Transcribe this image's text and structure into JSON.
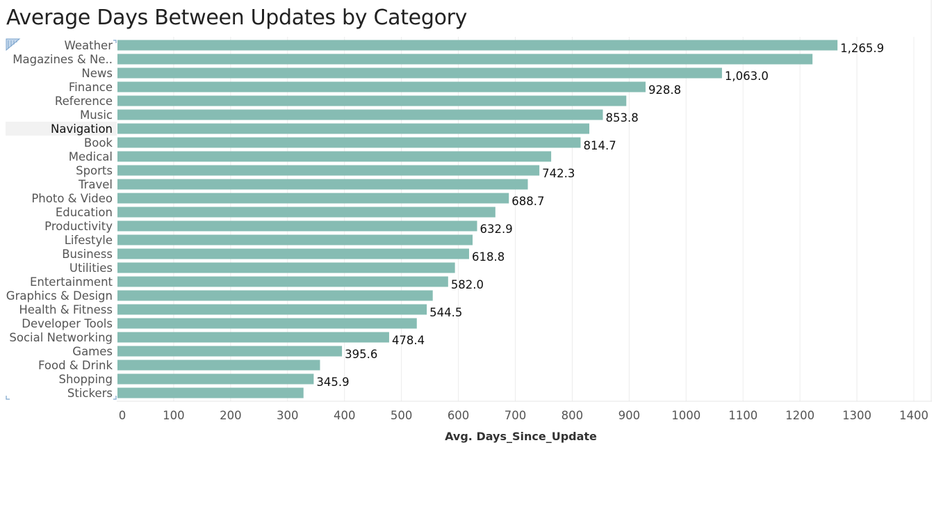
{
  "title": "Average Days Between Updates by Category",
  "colors": {
    "bar": "#86bcb3",
    "highlight_row": "#f2f2f2",
    "grid": "#ececec"
  },
  "highlighted_category": "Navigation",
  "chart_data": {
    "type": "bar",
    "orientation": "horizontal",
    "title": "Average Days Between Updates by Category",
    "xlabel": "Avg. Days_Since_Update",
    "ylabel": "",
    "xlim": [
      0,
      1400
    ],
    "x_ticks": [
      0,
      100,
      200,
      300,
      400,
      500,
      600,
      700,
      800,
      900,
      1000,
      1100,
      1200,
      1300,
      1400
    ],
    "grid": true,
    "categories": [
      "Weather",
      "Magazines & Ne..",
      "News",
      "Finance",
      "Reference",
      "Music",
      "Navigation",
      "Book",
      "Medical",
      "Sports",
      "Travel",
      "Photo & Video",
      "Education",
      "Productivity",
      "Lifestyle",
      "Business",
      "Utilities",
      "Entertainment",
      "Graphics & Design",
      "Health & Fitness",
      "Developer Tools",
      "Social Networking",
      "Games",
      "Food & Drink",
      "Shopping",
      "Stickers"
    ],
    "values": [
      1265.9,
      1222,
      1063.0,
      928.8,
      895,
      853.8,
      830,
      814.7,
      763,
      742.3,
      722,
      688.7,
      665,
      632.9,
      625,
      618.8,
      594,
      582.0,
      555,
      544.5,
      527,
      478.4,
      395.6,
      357,
      345.9,
      328
    ],
    "data_labels": [
      "1,265.9",
      "",
      "1,063.0",
      "928.8",
      "",
      "853.8",
      "",
      "814.7",
      "",
      "742.3",
      "",
      "688.7",
      "",
      "632.9",
      "",
      "618.8",
      "",
      "582.0",
      "",
      "544.5",
      "",
      "478.4",
      "395.6",
      "",
      "345.9",
      ""
    ]
  }
}
